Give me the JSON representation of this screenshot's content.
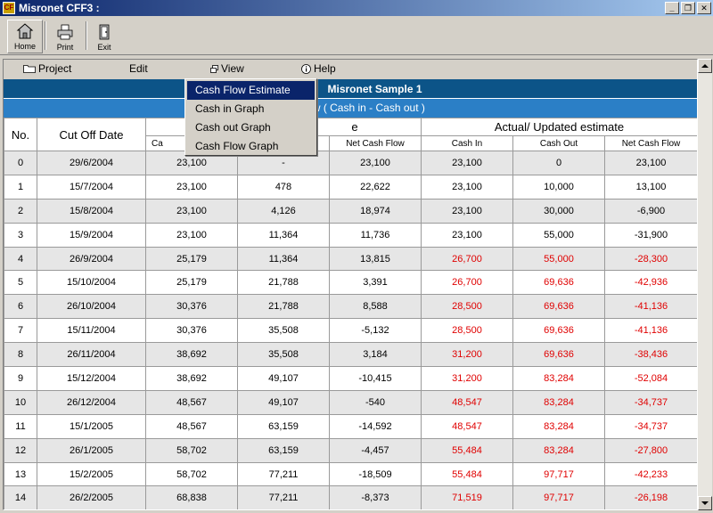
{
  "window": {
    "title": "Misronet CFF3 :",
    "icon": "app-logo-icon",
    "buttons": {
      "minimize": "_",
      "restore": "❐",
      "close": "✕"
    }
  },
  "toolbar": {
    "home_label": "Home",
    "print_label": "Print",
    "exit_label": "Exit"
  },
  "menu": {
    "project": "Project",
    "edit": "Edit",
    "view": "View",
    "help": "Help"
  },
  "view_dropdown": {
    "items": [
      "Cash Flow Estimate",
      "Cash in Graph",
      "Cash out Graph",
      "Cash Flow Graph"
    ],
    "selected": "Cash Flow Estimate"
  },
  "report": {
    "title": "Misronet Sample 1",
    "subtitle_visible": "ow ( Cash in - Cash out )"
  },
  "table": {
    "col_no": "No.",
    "col_cutoff": "Cut Off Date",
    "group_original_visible": "e",
    "group_actual": "Actual/ Updated estimate",
    "sub_cash_in_visible": "Ca",
    "sub_net_cash_flow": "Net Cash Flow",
    "sub_cash_in": "Cash In",
    "sub_cash_out": "Cash Out",
    "sub_net_cash_flow_2": "Net Cash Flow",
    "rows": [
      {
        "no": "0",
        "date": "29/6/2004",
        "c1": "23,100",
        "c2": "-",
        "c3": "23,100",
        "c4": "23,100",
        "c5": "0",
        "c6": "23,100",
        "red": false
      },
      {
        "no": "1",
        "date": "15/7/2004",
        "c1": "23,100",
        "c2": "478",
        "c3": "22,622",
        "c4": "23,100",
        "c5": "10,000",
        "c6": "13,100",
        "red": false
      },
      {
        "no": "2",
        "date": "15/8/2004",
        "c1": "23,100",
        "c2": "4,126",
        "c3": "18,974",
        "c4": "23,100",
        "c5": "30,000",
        "c6": "-6,900",
        "red": false
      },
      {
        "no": "3",
        "date": "15/9/2004",
        "c1": "23,100",
        "c2": "11,364",
        "c3": "11,736",
        "c4": "23,100",
        "c5": "55,000",
        "c6": "-31,900",
        "red": false
      },
      {
        "no": "4",
        "date": "26/9/2004",
        "c1": "25,179",
        "c2": "11,364",
        "c3": "13,815",
        "c4": "26,700",
        "c5": "55,000",
        "c6": "-28,300",
        "red": true
      },
      {
        "no": "5",
        "date": "15/10/2004",
        "c1": "25,179",
        "c2": "21,788",
        "c3": "3,391",
        "c4": "26,700",
        "c5": "69,636",
        "c6": "-42,936",
        "red": true
      },
      {
        "no": "6",
        "date": "26/10/2004",
        "c1": "30,376",
        "c2": "21,788",
        "c3": "8,588",
        "c4": "28,500",
        "c5": "69,636",
        "c6": "-41,136",
        "red": true
      },
      {
        "no": "7",
        "date": "15/11/2004",
        "c1": "30,376",
        "c2": "35,508",
        "c3": "-5,132",
        "c4": "28,500",
        "c5": "69,636",
        "c6": "-41,136",
        "red": true
      },
      {
        "no": "8",
        "date": "26/11/2004",
        "c1": "38,692",
        "c2": "35,508",
        "c3": "3,184",
        "c4": "31,200",
        "c5": "69,636",
        "c6": "-38,436",
        "red": true
      },
      {
        "no": "9",
        "date": "15/12/2004",
        "c1": "38,692",
        "c2": "49,107",
        "c3": "-10,415",
        "c4": "31,200",
        "c5": "83,284",
        "c6": "-52,084",
        "red": true
      },
      {
        "no": "10",
        "date": "26/12/2004",
        "c1": "48,567",
        "c2": "49,107",
        "c3": "-540",
        "c4": "48,547",
        "c5": "83,284",
        "c6": "-34,737",
        "red": true
      },
      {
        "no": "11",
        "date": "15/1/2005",
        "c1": "48,567",
        "c2": "63,159",
        "c3": "-14,592",
        "c4": "48,547",
        "c5": "83,284",
        "c6": "-34,737",
        "red": true
      },
      {
        "no": "12",
        "date": "26/1/2005",
        "c1": "58,702",
        "c2": "63,159",
        "c3": "-4,457",
        "c4": "55,484",
        "c5": "83,284",
        "c6": "-27,800",
        "red": true
      },
      {
        "no": "13",
        "date": "15/2/2005",
        "c1": "58,702",
        "c2": "77,211",
        "c3": "-18,509",
        "c4": "55,484",
        "c5": "97,717",
        "c6": "-42,233",
        "red": true
      },
      {
        "no": "14",
        "date": "26/2/2005",
        "c1": "68,838",
        "c2": "77,211",
        "c3": "-8,373",
        "c4": "71,519",
        "c5": "97,717",
        "c6": "-26,198",
        "red": true
      }
    ]
  },
  "colors": {
    "title_bar": "#0a246a",
    "header_dark": "#0c5488",
    "header_light": "#2b7fc6",
    "highlight": "#0a246a",
    "negative": "#e00000",
    "row_shade": "#e6e6e6"
  }
}
